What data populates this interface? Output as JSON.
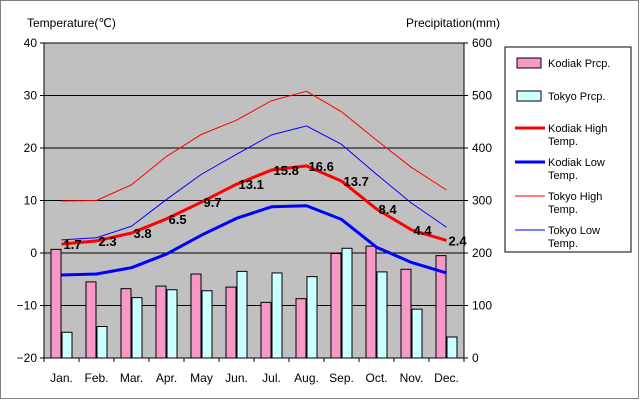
{
  "chart_data": {
    "type": "bar+line",
    "left_axis_title": "Temperature(℃)",
    "right_axis_title": "Precipitation(mm)",
    "categories": [
      "Jan.",
      "Feb.",
      "Mar.",
      "Apr.",
      "May",
      "Jun.",
      "Jul.",
      "Aug.",
      "Sep.",
      "Oct.",
      "Nov.",
      "Dec."
    ],
    "left_ylim": [
      -20,
      40
    ],
    "left_ticks": [
      "40",
      "30",
      "20",
      "10",
      "0",
      "−10",
      "−20"
    ],
    "right_ylim": [
      0,
      600
    ],
    "right_ticks": [
      "600",
      "500",
      "400",
      "300",
      "200",
      "100",
      "0"
    ],
    "grid": true,
    "legend_position": "right",
    "bars": [
      {
        "name": "Kodiak Prcp.",
        "color": "#f799c6",
        "values": [
          207,
          145,
          132,
          137,
          160,
          135,
          106,
          113,
          199,
          213,
          169,
          195
        ]
      },
      {
        "name": "Tokyo Prcp.",
        "color": "#ccffff",
        "values": [
          49,
          60,
          115,
          130,
          128,
          165,
          162,
          155,
          209,
          164,
          93,
          40
        ]
      }
    ],
    "lines": [
      {
        "name": "Kodiak High Temp.",
        "color": "#ff0000",
        "width": 3,
        "values": [
          1.7,
          2.3,
          3.8,
          6.5,
          9.7,
          13.1,
          15.8,
          16.6,
          13.7,
          8.4,
          4.4,
          2.4
        ]
      },
      {
        "name": "Kodiak Low Temp.",
        "color": "#0000ff",
        "width": 3,
        "values": [
          -4.2,
          -4.0,
          -2.8,
          -0.2,
          3.4,
          6.6,
          8.8,
          9.0,
          6.4,
          1.1,
          -1.8,
          -3.8
        ]
      },
      {
        "name": "Tokyo High Temp.",
        "color": "#ff0000",
        "width": 1,
        "values": [
          9.9,
          10.0,
          13.0,
          18.4,
          22.6,
          25.3,
          29.0,
          30.8,
          26.9,
          21.5,
          16.3,
          12.0
        ]
      },
      {
        "name": "Tokyo Low Temp.",
        "color": "#0000ff",
        "width": 1,
        "values": [
          2.5,
          2.9,
          5.1,
          10.2,
          15.0,
          18.8,
          22.5,
          24.2,
          20.7,
          15.0,
          9.5,
          4.9
        ]
      }
    ],
    "data_labels": [
      "1.7",
      "2.3",
      "3.8",
      "6.5",
      "9.7",
      "13.1",
      "15.8",
      "16.6",
      "13.7",
      "8.4",
      "4.4",
      "2.4"
    ],
    "legend": [
      {
        "label_line1": "Kodiak Prcp.",
        "label_line2": "",
        "kind": "bar",
        "color": "#f799c6"
      },
      {
        "label_line1": "Tokyo Prcp.",
        "label_line2": "",
        "kind": "bar",
        "color": "#ccffff"
      },
      {
        "label_line1": "Kodiak High",
        "label_line2": "Temp.",
        "kind": "line",
        "color": "#ff0000",
        "width": 3
      },
      {
        "label_line1": "Kodiak Low",
        "label_line2": "Temp.",
        "kind": "line",
        "color": "#0000ff",
        "width": 3
      },
      {
        "label_line1": "Tokyo High",
        "label_line2": "Temp.",
        "kind": "line",
        "color": "#ff0000",
        "width": 1
      },
      {
        "label_line1": "Tokyo Low",
        "label_line2": "Temp.",
        "kind": "line",
        "color": "#0000ff",
        "width": 1
      }
    ]
  }
}
